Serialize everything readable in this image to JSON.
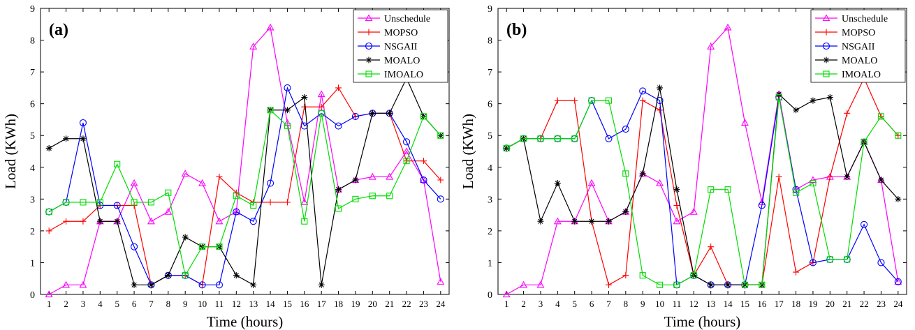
{
  "chart_data": [
    {
      "type": "line",
      "panel_label": "(a)",
      "xlabel": "Time (hours)",
      "ylabel": "Load (KWh)",
      "xlim": [
        0.5,
        24.5
      ],
      "ylim": [
        0,
        9
      ],
      "x": [
        1,
        2,
        3,
        4,
        5,
        6,
        7,
        8,
        9,
        10,
        11,
        12,
        13,
        14,
        15,
        16,
        17,
        18,
        19,
        20,
        21,
        22,
        23,
        24
      ],
      "yticks": [
        0,
        1,
        2,
        3,
        4,
        5,
        6,
        7,
        8,
        9
      ],
      "legend_position": "top-right",
      "series": [
        {
          "name": "Unschedule",
          "color": "#ff00ff",
          "marker": "triangle",
          "values": [
            0.0,
            0.3,
            0.3,
            2.3,
            2.3,
            3.5,
            2.3,
            2.6,
            3.8,
            3.5,
            2.3,
            2.6,
            7.8,
            8.4,
            5.4,
            2.9,
            6.3,
            3.3,
            3.6,
            3.7,
            3.7,
            4.5,
            3.6,
            0.4
          ]
        },
        {
          "name": "MOPSO",
          "color": "#ff0000",
          "marker": "plus",
          "values": [
            2.0,
            2.3,
            2.3,
            2.8,
            2.8,
            2.8,
            0.3,
            0.6,
            0.6,
            0.3,
            3.7,
            3.2,
            2.9,
            2.9,
            2.9,
            5.9,
            5.9,
            6.5,
            5.6,
            5.7,
            5.7,
            4.2,
            4.2,
            3.6
          ]
        },
        {
          "name": "NSGAII",
          "color": "#0000ff",
          "marker": "circle",
          "values": [
            2.6,
            2.9,
            5.4,
            2.8,
            2.8,
            1.5,
            0.3,
            0.6,
            0.6,
            0.3,
            0.3,
            2.6,
            2.3,
            3.5,
            6.5,
            5.3,
            5.7,
            5.3,
            5.6,
            5.7,
            5.7,
            4.8,
            3.6,
            3.0
          ]
        },
        {
          "name": "MOALO",
          "color": "#000000",
          "marker": "star",
          "values": [
            4.6,
            4.9,
            4.9,
            2.3,
            2.3,
            0.3,
            0.3,
            0.6,
            1.8,
            1.5,
            1.5,
            0.6,
            0.3,
            5.8,
            5.8,
            6.2,
            0.3,
            3.3,
            3.6,
            5.7,
            5.7,
            6.8,
            5.6,
            5.0
          ]
        },
        {
          "name": "IMOALO",
          "color": "#00dd00",
          "marker": "square",
          "values": [
            2.6,
            2.9,
            2.9,
            2.9,
            4.1,
            2.9,
            2.9,
            3.2,
            0.6,
            1.5,
            1.5,
            3.1,
            2.8,
            5.8,
            5.3,
            2.3,
            5.7,
            2.7,
            3.0,
            3.1,
            3.1,
            4.2,
            5.6,
            5.0
          ]
        }
      ]
    },
    {
      "type": "line",
      "panel_label": "(b)",
      "xlabel": "Time (hours)",
      "ylabel": "Load (KWh)",
      "xlim": [
        0.5,
        24.5
      ],
      "ylim": [
        0,
        9
      ],
      "x": [
        1,
        2,
        3,
        4,
        5,
        6,
        7,
        8,
        9,
        10,
        11,
        12,
        13,
        14,
        15,
        16,
        17,
        18,
        19,
        20,
        21,
        22,
        23,
        24
      ],
      "yticks": [
        0,
        1,
        2,
        3,
        4,
        5,
        6,
        7,
        8,
        9
      ],
      "legend_position": "top-right",
      "series": [
        {
          "name": "Unschedule",
          "color": "#ff00ff",
          "marker": "triangle",
          "values": [
            0.0,
            0.3,
            0.3,
            2.3,
            2.3,
            3.5,
            2.3,
            2.6,
            3.8,
            3.5,
            2.3,
            2.6,
            7.8,
            8.4,
            5.4,
            2.9,
            6.3,
            3.3,
            3.6,
            3.7,
            3.7,
            4.8,
            3.6,
            0.4
          ]
        },
        {
          "name": "MOPSO",
          "color": "#ff0000",
          "marker": "plus",
          "values": [
            4.6,
            4.9,
            4.9,
            6.1,
            6.1,
            2.3,
            0.3,
            0.6,
            6.1,
            5.8,
            2.8,
            0.6,
            1.5,
            0.3,
            0.3,
            0.3,
            3.7,
            0.7,
            1.0,
            3.7,
            5.7,
            6.8,
            5.6,
            5.0
          ]
        },
        {
          "name": "NSGAII",
          "color": "#0000ff",
          "marker": "circle",
          "values": [
            4.6,
            4.9,
            4.9,
            4.9,
            4.9,
            6.1,
            4.9,
            5.2,
            6.4,
            6.1,
            0.3,
            0.6,
            0.3,
            0.3,
            0.3,
            2.8,
            6.2,
            3.3,
            1.0,
            1.1,
            1.1,
            2.2,
            1.0,
            0.4
          ]
        },
        {
          "name": "MOALO",
          "color": "#000000",
          "marker": "star",
          "values": [
            4.6,
            4.9,
            2.3,
            3.5,
            2.3,
            2.3,
            2.3,
            2.6,
            3.8,
            6.5,
            3.3,
            0.6,
            0.3,
            0.3,
            0.3,
            0.3,
            6.3,
            5.8,
            6.1,
            6.2,
            3.7,
            4.8,
            3.6,
            3.0
          ]
        },
        {
          "name": "IMOALO",
          "color": "#00dd00",
          "marker": "square",
          "values": [
            4.6,
            4.9,
            4.9,
            4.9,
            4.9,
            6.1,
            6.1,
            3.8,
            0.6,
            0.3,
            0.3,
            0.6,
            3.3,
            3.3,
            0.3,
            0.3,
            6.2,
            3.2,
            3.5,
            1.1,
            1.1,
            4.8,
            5.6,
            5.0
          ]
        }
      ]
    }
  ]
}
